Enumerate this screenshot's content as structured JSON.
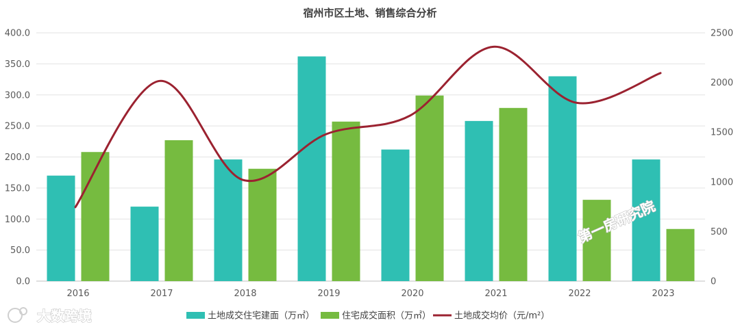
{
  "chart_data": {
    "type": "bar",
    "title": "宿州市区土地、销售综合分析",
    "categories": [
      "2016",
      "2017",
      "2018",
      "2019",
      "2020",
      "2021",
      "2022",
      "2023"
    ],
    "series": [
      {
        "name": "土地成交住宅建面（万㎡）",
        "type": "bar",
        "axis": "left",
        "color": "#2fbfb3",
        "values": [
          170,
          120,
          196,
          362,
          212,
          258,
          330,
          196
        ]
      },
      {
        "name": "住宅成交面积（万㎡）",
        "type": "bar",
        "axis": "left",
        "color": "#76bb40",
        "values": [
          208,
          227,
          181,
          257,
          299,
          279,
          131,
          84
        ]
      },
      {
        "name": "土地成交均价（元/m²）",
        "type": "line",
        "axis": "right",
        "color": "#9b2230",
        "values": [
          745,
          2015,
          1020,
          1480,
          1665,
          2360,
          1795,
          2095
        ]
      }
    ],
    "y_left": {
      "min": 0,
      "max": 400,
      "step": 50,
      "tick_labels": [
        "0.0",
        "50.0",
        "100.0",
        "150.0",
        "200.0",
        "250.0",
        "300.0",
        "350.0",
        "400.0"
      ]
    },
    "y_right": {
      "min": 0,
      "max": 2500,
      "step": 500,
      "tick_labels": [
        "0",
        "500",
        "1000",
        "1500",
        "2000",
        "2500"
      ]
    },
    "grid": true,
    "legend": "bottom"
  },
  "watermarks": {
    "center_right": "第一房研究院",
    "bottom_left": "大数跨境"
  }
}
